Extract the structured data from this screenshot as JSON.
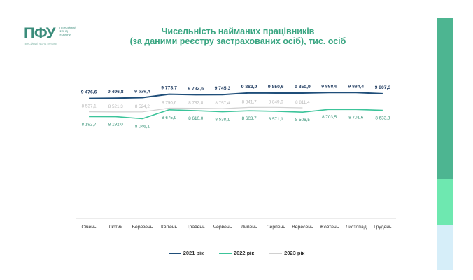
{
  "logo": {
    "mark": "ПФУ",
    "sub_lines": [
      "ПЕНСІЙНИЙ",
      "ФОНД",
      "УКРАЇНИ"
    ],
    "tagline": "ПЕНСІЙНИЙ ФОНД УКРАЇНИ"
  },
  "colors": {
    "title": "#3aa682",
    "series_2021": "#1f4e79",
    "series_2022": "#3cc49a",
    "series_2023": "#d0d0d0",
    "sidebar_top": "#4db591",
    "sidebar_mid": "#6ee8b0",
    "sidebar_bottom": "#d6eef9"
  },
  "chart_data": {
    "type": "line",
    "title": "Чисельність найманих працівників",
    "subtitle": "(за даними реєстру застрахованих осіб), тис. осіб",
    "categories": [
      "Січень",
      "Лютий",
      "Березень",
      "Квітень",
      "Травень",
      "Червень",
      "Липень",
      "Серпень",
      "Вересень",
      "Жовтень",
      "Листопад",
      "Грудень"
    ],
    "series": [
      {
        "name": "2021 рік",
        "values": [
          9476.6,
          9496.8,
          9529.4,
          9773.7,
          9732.6,
          9745.3,
          9863.9,
          9850.6,
          9850.9,
          9888.6,
          9884.4,
          9807.3
        ],
        "labels": [
          "9 476,6",
          "9 496,8",
          "9 529,4",
          "9 773,7",
          "9 732,6",
          "9 745,3",
          "9 863,9",
          "9 850,6",
          "9 850,9",
          "9 888,6",
          "9 884,4",
          "9 807,3"
        ]
      },
      {
        "name": "2022 рік",
        "values": [
          8192.7,
          8192.0,
          8046.1,
          8675.9,
          8610.0,
          8538.1,
          8603.7,
          8571.1,
          8506.5,
          8703.5,
          8701.6,
          8633.8
        ],
        "labels": [
          "8 192,7",
          "8 192,0",
          "8 046,1",
          "8 675,9",
          "8 610,0",
          "8 538,1",
          "8 603,7",
          "8 571,1",
          "8 506,5",
          "8 703,5",
          "8 701,6",
          "8 633,8"
        ]
      },
      {
        "name": "2023 рік",
        "values": [
          8537.1,
          8521.3,
          8524.2,
          8790.6,
          8782.8,
          8757.4,
          8841.7,
          8849.9,
          8811.4,
          null,
          null,
          null
        ],
        "labels": [
          "8 537,1",
          "8 521,3",
          "8 524,2",
          "8 790,6",
          "8 782,8",
          "8 757,4",
          "8 841,7",
          "8 849,9",
          "8 811,4",
          "",
          "",
          ""
        ]
      }
    ],
    "ylim": [
      1000,
      10000
    ],
    "grid": false,
    "legend": "bottom"
  }
}
